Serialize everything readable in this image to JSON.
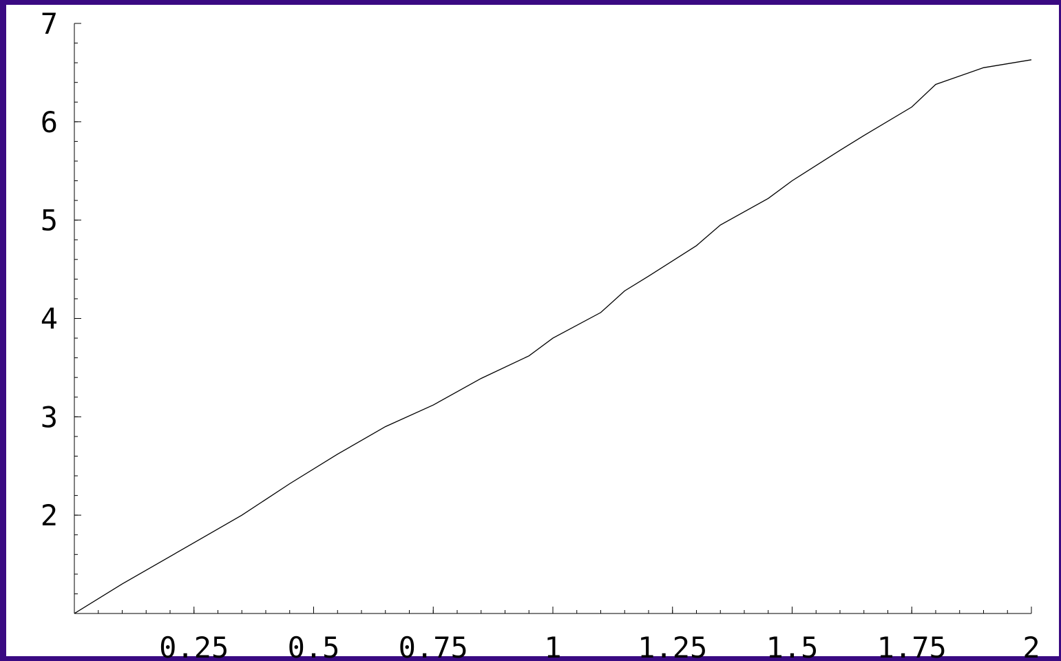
{
  "colors": {
    "frame": "#3a0a82",
    "background": "#ffffff",
    "line": "#000000"
  },
  "chart_data": {
    "type": "line",
    "title": "",
    "xlabel": "",
    "ylabel": "",
    "xlim": [
      0,
      2
    ],
    "ylim": [
      1,
      7
    ],
    "x_ticks": [
      0.25,
      0.5,
      0.75,
      1,
      1.25,
      1.5,
      1.75,
      2
    ],
    "x_tick_labels": [
      "0.25",
      "0.5",
      "0.75",
      "1",
      "1.25",
      "1.5",
      "1.75",
      "2"
    ],
    "x_minor_step": 0.05,
    "y_ticks": [
      2,
      3,
      4,
      5,
      6,
      7
    ],
    "y_tick_labels": [
      "2",
      "3",
      "4",
      "5",
      "6",
      "7"
    ],
    "y_minor_step": 0.2,
    "grid": false,
    "series": [
      {
        "x": [
          0,
          0.1,
          0.25,
          0.35,
          0.45,
          0.55,
          0.65,
          0.75,
          0.85,
          0.95,
          1.0,
          1.1,
          1.15,
          1.2,
          1.3,
          1.35,
          1.45,
          1.5,
          1.6,
          1.65,
          1.75,
          1.8,
          1.9,
          2.0
        ],
        "y": [
          1.0,
          1.3,
          1.72,
          2.0,
          2.32,
          2.62,
          2.9,
          3.12,
          3.39,
          3.62,
          3.8,
          4.06,
          4.28,
          4.43,
          4.74,
          4.95,
          5.22,
          5.4,
          5.71,
          5.86,
          6.15,
          6.38,
          6.55,
          6.63
        ]
      }
    ]
  }
}
